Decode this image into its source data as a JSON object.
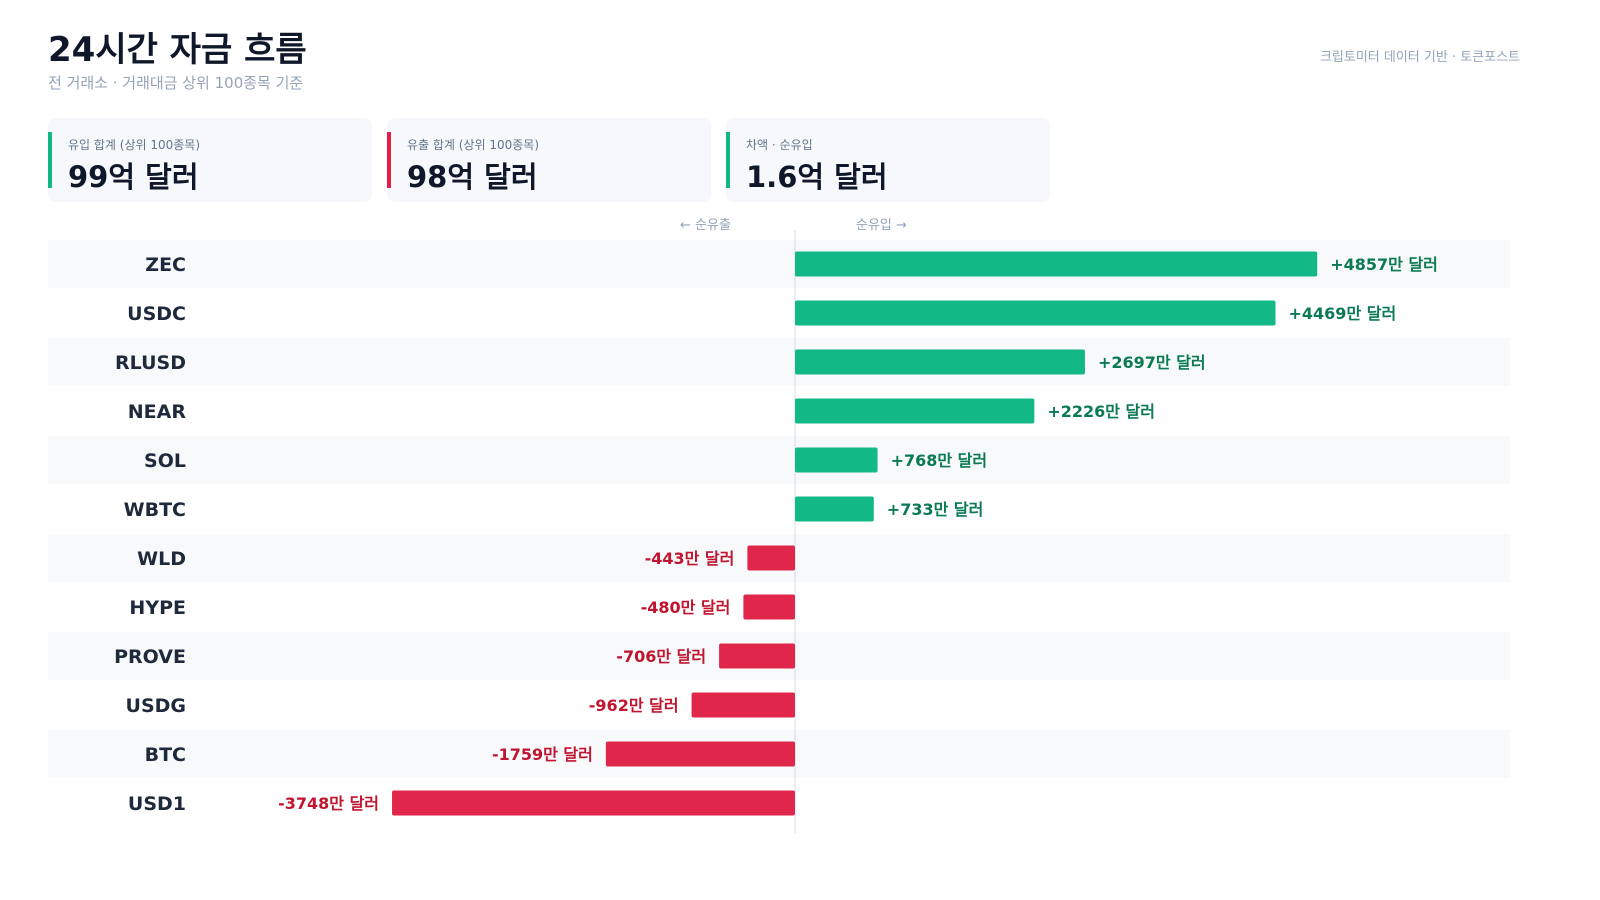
{
  "header": {
    "title": "24시간 자금 흐름",
    "subtitle": "전 거래소 · 거래대금 상위 100종목 기준",
    "source": "크립토미터 데이터 기반 · 토큰포스트"
  },
  "cards": [
    {
      "label": "유입 합계 (상위 100종목)",
      "value": "99억 달러",
      "accent": "#10b981"
    },
    {
      "label": "유출 합계 (상위 100종목)",
      "value": "98억 달러",
      "accent": "#e11d48"
    },
    {
      "label": "차액 · 순유입",
      "value": "1.6억 달러",
      "accent": "#10b981"
    }
  ],
  "axis": {
    "left_label": "← 순유출",
    "right_label": "순유입 →"
  },
  "colors": {
    "inflow": "#12b886",
    "outflow": "#e0264a",
    "inflow_text": "#0a7a52",
    "outflow_text": "#c0142f",
    "row_band": "#f7f9fb"
  },
  "chart_data": {
    "type": "bar",
    "orientation": "horizontal",
    "unit": "만 달러",
    "categories": [
      "ZEC",
      "USDC",
      "RLUSD",
      "NEAR",
      "SOL",
      "WBTC",
      "WLD",
      "HYPE",
      "PROVE",
      "USDG",
      "BTC",
      "USD1"
    ],
    "values": [
      4857,
      4469,
      2697,
      2226,
      768,
      733,
      -443,
      -480,
      -706,
      -962,
      -1759,
      -3748
    ],
    "labels": [
      "+4857만 달러",
      "+4469만 달러",
      "+2697만 달러",
      "+2226만 달러",
      "+768만 달러",
      "+733만 달러",
      "-443만 달러",
      "-480만 달러",
      "-706만 달러",
      "-962만 달러",
      "-1759만 달러",
      "-3748만 달러"
    ],
    "xlim": [
      -6650,
      6650
    ]
  }
}
